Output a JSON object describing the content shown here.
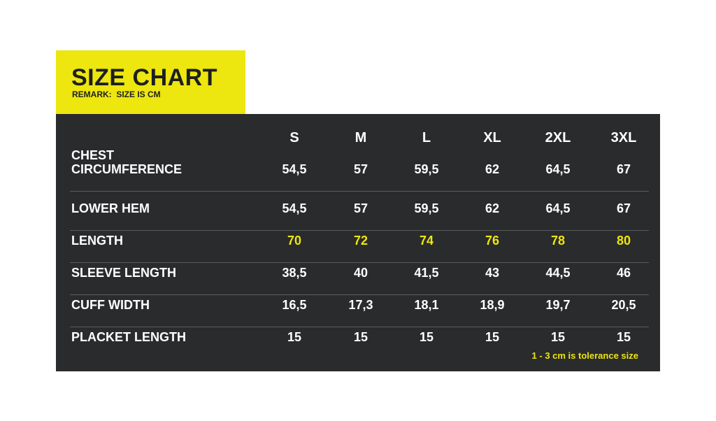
{
  "header": {
    "title": "SIZE CHART",
    "remark": "REMARK:  SIZE IS CM"
  },
  "table": {
    "columns": [
      "S",
      "M",
      "L",
      "XL",
      "2XL",
      "3XL"
    ],
    "rows": [
      {
        "label": [
          "CHEST",
          "CIRCUMFERENCE"
        ],
        "values": [
          "54,5",
          "57",
          "59,5",
          "62",
          "64,5",
          "67"
        ]
      },
      {
        "label": [
          "LOWER HEM"
        ],
        "values": [
          "54,5",
          "57",
          "59,5",
          "62",
          "64,5",
          "67"
        ]
      },
      {
        "label": [
          "LENGTH"
        ],
        "values": [
          "70",
          "72",
          "74",
          "76",
          "78",
          "80"
        ]
      },
      {
        "label": [
          "SLEEVE LENGTH"
        ],
        "values": [
          "38,5",
          "40",
          "41,5",
          "43",
          "44,5",
          "46"
        ]
      },
      {
        "label": [
          "CUFF WIDTH"
        ],
        "values": [
          "16,5",
          "17,3",
          "18,1",
          "18,9",
          "19,7",
          "20,5"
        ]
      },
      {
        "label": [
          "PLACKET LENGTH"
        ],
        "values": [
          "15",
          "15",
          "15",
          "15",
          "15",
          "15"
        ]
      }
    ],
    "note": "1 - 3 cm is tolerance size"
  }
}
